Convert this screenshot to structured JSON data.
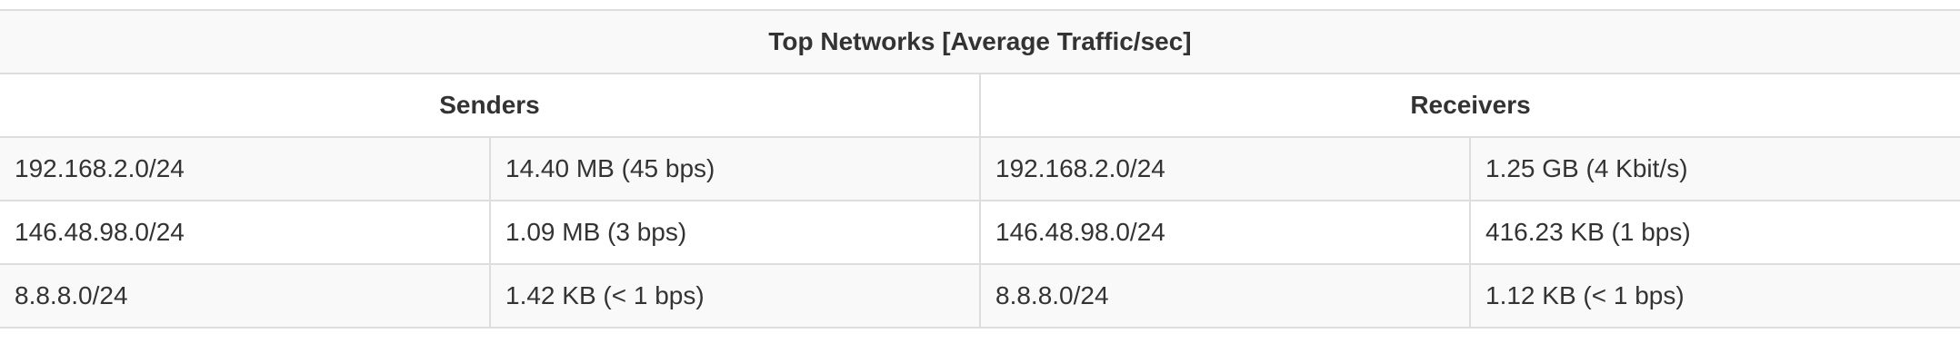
{
  "table": {
    "title": "Top Networks [Average Traffic/sec]",
    "sections": {
      "senders": "Senders",
      "receivers": "Receivers"
    },
    "rows": [
      {
        "sender_network": "192.168.2.0/24",
        "sender_traffic": "14.40 MB (45 bps)",
        "receiver_network": "192.168.2.0/24",
        "receiver_traffic": "1.25 GB (4 Kbit/s)"
      },
      {
        "sender_network": "146.48.98.0/24",
        "sender_traffic": "1.09 MB (3 bps)",
        "receiver_network": "146.48.98.0/24",
        "receiver_traffic": "416.23 KB (1 bps)"
      },
      {
        "sender_network": "8.8.8.0/24",
        "sender_traffic": "1.42 KB (< 1 bps)",
        "receiver_network": "8.8.8.0/24",
        "receiver_traffic": "1.12 KB (< 1 bps)"
      }
    ]
  }
}
